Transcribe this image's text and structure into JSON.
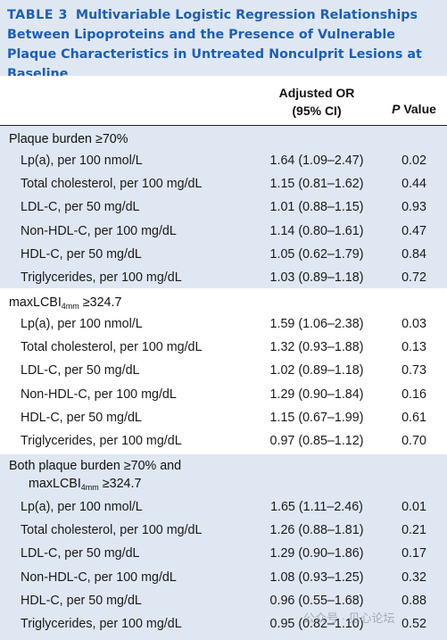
{
  "title": {
    "label": "TABLE 3",
    "text": "Multivariable Logistic Regression Relationships Between Lipoproteins and the Presence of Vulnerable Plaque Characteristics in Untreated Nonculprit Lesions at Baseline"
  },
  "columns": {
    "or_line1": "Adjusted OR",
    "or_line2": "(95% CI)",
    "p_italic": "P",
    "p_rest": " Value"
  },
  "groups": [
    {
      "head": "Plaque burden ≥70%",
      "rows": [
        {
          "label": "Lp(a), per 100 nmol/L",
          "or": "1.64 (1.09–2.47)",
          "p": "0.02"
        },
        {
          "label": "Total cholesterol, per 100 mg/dL",
          "or": "1.15 (0.81–1.62)",
          "p": "0.44"
        },
        {
          "label": "LDL-C, per 50 mg/dL",
          "or": "1.01 (0.88–1.15)",
          "p": "0.93"
        },
        {
          "label": "Non-HDL-C, per 100 mg/dL",
          "or": "1.14 (0.80–1.61)",
          "p": "0.47"
        },
        {
          "label": "HDL-C, per 50 mg/dL",
          "or": "1.05 (0.62–1.79)",
          "p": "0.84"
        },
        {
          "label": "Triglycerides, per 100 mg/dL",
          "or": "1.03 (0.89–1.18)",
          "p": "0.72"
        }
      ]
    },
    {
      "head_pre": "maxLCBI",
      "head_sub": "4mm",
      "head_post": " ≥324.7",
      "rows": [
        {
          "label": "Lp(a), per 100 nmol/L",
          "or": "1.59 (1.06–2.38)",
          "p": "0.03"
        },
        {
          "label": "Total cholesterol, per 100 mg/dL",
          "or": "1.32 (0.93–1.88)",
          "p": "0.13"
        },
        {
          "label": "LDL-C, per 50 mg/dL",
          "or": "1.02 (0.89–1.18)",
          "p": "0.73"
        },
        {
          "label": "Non-HDL-C, per 100 mg/dL",
          "or": "1.29 (0.90–1.84)",
          "p": "0.16"
        },
        {
          "label": "HDL-C, per 50 mg/dL",
          "or": "1.15 (0.67–1.99)",
          "p": "0.61"
        },
        {
          "label": "Triglycerides, per 100 mg/dL",
          "or": "0.97 (0.85–1.12)",
          "p": "0.70"
        }
      ]
    },
    {
      "head_line1": "Both plaque burden ≥70% and",
      "head_pre": "maxLCBI",
      "head_sub": "4mm",
      "head_post": " ≥324.7",
      "rows": [
        {
          "label": "Lp(a), per 100 nmol/L",
          "or": "1.65 (1.11–2.46)",
          "p": "0.01"
        },
        {
          "label": "Total cholesterol, per 100 mg/dL",
          "or": "1.26 (0.88–1.81)",
          "p": "0.21"
        },
        {
          "label": "LDL-C, per 50 mg/dL",
          "or": "1.29 (0.90–1.86)",
          "p": "0.17"
        },
        {
          "label": "Non-HDL-C, per 100 mg/dL",
          "or": "1.08 (0.93–1.25)",
          "p": "0.32"
        },
        {
          "label": "HDL-C, per 50 mg/dL",
          "or": "0.96 (0.55–1.68)",
          "p": "0.88"
        },
        {
          "label": "Triglycerides, per 100 mg/dL",
          "or": "0.95 (0.82–1.10)",
          "p": "0.52"
        }
      ]
    }
  ],
  "watermark": "公众号 · 见心论坛"
}
